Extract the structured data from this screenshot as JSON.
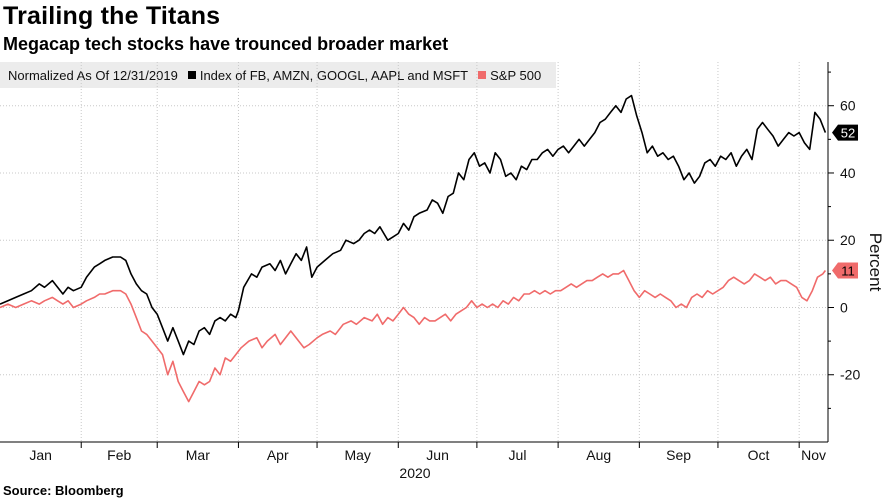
{
  "header": {
    "title": "Trailing the Titans",
    "subtitle": "Megacap tech stocks have trounced broader market"
  },
  "legend": {
    "note": "Normalized As Of 12/31/2019",
    "items": [
      {
        "label": "Index of FB, AMZN, GOOGL, AAPL and MSFT",
        "color": "#000000"
      },
      {
        "label": "S&P 500",
        "color": "#f06b6b"
      }
    ]
  },
  "source": "Source: Bloomberg",
  "colors": {
    "tech": "#000000",
    "spx": "#f06b6b",
    "grid": "#c8c8c8"
  },
  "chart_data": {
    "type": "line",
    "ylabel": "Percent",
    "year_label": "2020",
    "ylim": [
      -40,
      73
    ],
    "yticks": [
      -20,
      0,
      20,
      40,
      60
    ],
    "xlim": [
      0,
      316
    ],
    "months": [
      {
        "label": "Jan",
        "start": 0,
        "end": 31
      },
      {
        "label": "Feb",
        "start": 31,
        "end": 60
      },
      {
        "label": "Mar",
        "start": 60,
        "end": 91
      },
      {
        "label": "Apr",
        "start": 91,
        "end": 121
      },
      {
        "label": "May",
        "start": 121,
        "end": 152
      },
      {
        "label": "Jun",
        "start": 152,
        "end": 182
      },
      {
        "label": "Jul",
        "start": 182,
        "end": 213
      },
      {
        "label": "Aug",
        "start": 213,
        "end": 244
      },
      {
        "label": "Sep",
        "start": 244,
        "end": 274
      },
      {
        "label": "Oct",
        "start": 274,
        "end": 305
      },
      {
        "label": "Nov",
        "start": 305,
        "end": 316
      }
    ],
    "series": [
      {
        "name": "Index of FB, AMZN, GOOGL, AAPL and MSFT",
        "end_label": "52",
        "points": [
          [
            0,
            1
          ],
          [
            3,
            2
          ],
          [
            6,
            3
          ],
          [
            9,
            4
          ],
          [
            12,
            5
          ],
          [
            15,
            7
          ],
          [
            17,
            6
          ],
          [
            20,
            8
          ],
          [
            22,
            6
          ],
          [
            24,
            4
          ],
          [
            26,
            6
          ],
          [
            28,
            5
          ],
          [
            31,
            6
          ],
          [
            33,
            9
          ],
          [
            36,
            12
          ],
          [
            38,
            13
          ],
          [
            40,
            14
          ],
          [
            43,
            15
          ],
          [
            46,
            15
          ],
          [
            48,
            14
          ],
          [
            50,
            10
          ],
          [
            52,
            7
          ],
          [
            54,
            5
          ],
          [
            56,
            4
          ],
          [
            58,
            0
          ],
          [
            60,
            -2
          ],
          [
            62,
            -6
          ],
          [
            64,
            -10
          ],
          [
            66,
            -6
          ],
          [
            68,
            -10
          ],
          [
            70,
            -14
          ],
          [
            72,
            -10
          ],
          [
            74,
            -11
          ],
          [
            76,
            -7
          ],
          [
            78,
            -6
          ],
          [
            80,
            -8
          ],
          [
            82,
            -4
          ],
          [
            84,
            -3
          ],
          [
            86,
            -4
          ],
          [
            88,
            -2
          ],
          [
            90,
            -3
          ],
          [
            91,
            -1
          ],
          [
            93,
            6
          ],
          [
            96,
            10
          ],
          [
            98,
            9
          ],
          [
            100,
            12
          ],
          [
            103,
            13
          ],
          [
            105,
            11
          ],
          [
            107,
            14
          ],
          [
            109,
            10
          ],
          [
            111,
            13
          ],
          [
            113,
            16
          ],
          [
            115,
            14
          ],
          [
            117,
            18
          ],
          [
            119,
            9
          ],
          [
            121,
            12
          ],
          [
            124,
            14
          ],
          [
            127,
            16
          ],
          [
            130,
            17
          ],
          [
            132,
            20
          ],
          [
            135,
            19
          ],
          [
            137,
            20
          ],
          [
            139,
            22
          ],
          [
            141,
            23
          ],
          [
            143,
            22
          ],
          [
            145,
            24
          ],
          [
            148,
            20
          ],
          [
            150,
            21
          ],
          [
            152,
            22
          ],
          [
            154,
            25
          ],
          [
            156,
            23
          ],
          [
            158,
            27
          ],
          [
            160,
            28
          ],
          [
            163,
            29
          ],
          [
            165,
            32
          ],
          [
            167,
            31
          ],
          [
            169,
            28
          ],
          [
            171,
            33
          ],
          [
            173,
            34
          ],
          [
            175,
            40
          ],
          [
            177,
            38
          ],
          [
            179,
            44
          ],
          [
            181,
            46
          ],
          [
            183,
            42
          ],
          [
            185,
            43
          ],
          [
            187,
            40
          ],
          [
            189,
            46
          ],
          [
            191,
            44
          ],
          [
            193,
            39
          ],
          [
            195,
            40
          ],
          [
            197,
            38
          ],
          [
            199,
            42
          ],
          [
            201,
            41
          ],
          [
            203,
            44
          ],
          [
            205,
            44
          ],
          [
            207,
            46
          ],
          [
            209,
            47
          ],
          [
            211,
            45
          ],
          [
            213,
            47
          ],
          [
            215,
            48
          ],
          [
            217,
            46
          ],
          [
            219,
            48
          ],
          [
            221,
            50
          ],
          [
            223,
            48
          ],
          [
            225,
            50
          ],
          [
            227,
            52
          ],
          [
            229,
            55
          ],
          [
            231,
            56
          ],
          [
            233,
            58
          ],
          [
            235,
            60
          ],
          [
            237,
            58
          ],
          [
            239,
            62
          ],
          [
            241,
            63
          ],
          [
            243,
            57
          ],
          [
            245,
            52
          ],
          [
            247,
            46
          ],
          [
            249,
            48
          ],
          [
            251,
            45
          ],
          [
            253,
            46
          ],
          [
            255,
            44
          ],
          [
            257,
            45
          ],
          [
            259,
            42
          ],
          [
            261,
            38
          ],
          [
            263,
            40
          ],
          [
            265,
            37
          ],
          [
            267,
            39
          ],
          [
            269,
            43
          ],
          [
            271,
            44
          ],
          [
            273,
            42
          ],
          [
            275,
            45
          ],
          [
            277,
            44
          ],
          [
            279,
            46
          ],
          [
            281,
            42
          ],
          [
            283,
            45
          ],
          [
            285,
            47
          ],
          [
            287,
            44
          ],
          [
            289,
            53
          ],
          [
            291,
            55
          ],
          [
            293,
            53
          ],
          [
            295,
            51
          ],
          [
            297,
            48
          ],
          [
            299,
            50
          ],
          [
            301,
            52
          ],
          [
            303,
            51
          ],
          [
            305,
            52
          ],
          [
            307,
            49
          ],
          [
            309,
            47
          ],
          [
            311,
            58
          ],
          [
            313,
            56
          ],
          [
            315,
            52
          ]
        ]
      },
      {
        "name": "S&P 500",
        "end_label": "11",
        "points": [
          [
            0,
            0
          ],
          [
            3,
            1
          ],
          [
            6,
            0
          ],
          [
            9,
            1
          ],
          [
            12,
            2
          ],
          [
            15,
            1
          ],
          [
            17,
            2
          ],
          [
            20,
            3
          ],
          [
            22,
            2
          ],
          [
            24,
            1
          ],
          [
            26,
            2
          ],
          [
            28,
            0
          ],
          [
            31,
            1
          ],
          [
            33,
            2
          ],
          [
            36,
            3
          ],
          [
            38,
            4
          ],
          [
            40,
            4
          ],
          [
            43,
            5
          ],
          [
            46,
            5
          ],
          [
            48,
            4
          ],
          [
            50,
            1
          ],
          [
            52,
            -3
          ],
          [
            54,
            -7
          ],
          [
            56,
            -8
          ],
          [
            58,
            -10
          ],
          [
            60,
            -12
          ],
          [
            62,
            -14
          ],
          [
            64,
            -20
          ],
          [
            66,
            -16
          ],
          [
            68,
            -22
          ],
          [
            70,
            -25
          ],
          [
            72,
            -28
          ],
          [
            74,
            -25
          ],
          [
            76,
            -22
          ],
          [
            78,
            -23
          ],
          [
            80,
            -22
          ],
          [
            82,
            -18
          ],
          [
            84,
            -20
          ],
          [
            86,
            -15
          ],
          [
            88,
            -16
          ],
          [
            90,
            -14
          ],
          [
            92,
            -12
          ],
          [
            95,
            -10
          ],
          [
            98,
            -9
          ],
          [
            100,
            -12
          ],
          [
            102,
            -10
          ],
          [
            105,
            -8
          ],
          [
            107,
            -11
          ],
          [
            109,
            -9
          ],
          [
            111,
            -7
          ],
          [
            114,
            -10
          ],
          [
            116,
            -12
          ],
          [
            118,
            -11
          ],
          [
            121,
            -9
          ],
          [
            123,
            -8
          ],
          [
            126,
            -7
          ],
          [
            128,
            -8
          ],
          [
            131,
            -5
          ],
          [
            134,
            -4
          ],
          [
            136,
            -5
          ],
          [
            139,
            -3
          ],
          [
            142,
            -4
          ],
          [
            144,
            -2
          ],
          [
            146,
            -5
          ],
          [
            148,
            -3
          ],
          [
            150,
            -4
          ],
          [
            152,
            -2
          ],
          [
            154,
            0
          ],
          [
            156,
            -2
          ],
          [
            158,
            -3
          ],
          [
            160,
            -5
          ],
          [
            162,
            -3
          ],
          [
            164,
            -4
          ],
          [
            166,
            -4
          ],
          [
            168,
            -3
          ],
          [
            170,
            -2
          ],
          [
            172,
            -4
          ],
          [
            174,
            -2
          ],
          [
            176,
            -1
          ],
          [
            178,
            0
          ],
          [
            180,
            2
          ],
          [
            182,
            0
          ],
          [
            184,
            1
          ],
          [
            186,
            0
          ],
          [
            188,
            1
          ],
          [
            190,
            0
          ],
          [
            192,
            2
          ],
          [
            194,
            1
          ],
          [
            196,
            3
          ],
          [
            198,
            2
          ],
          [
            200,
            4
          ],
          [
            202,
            4
          ],
          [
            204,
            5
          ],
          [
            206,
            4
          ],
          [
            208,
            5
          ],
          [
            210,
            4
          ],
          [
            212,
            5
          ],
          [
            214,
            5
          ],
          [
            216,
            6
          ],
          [
            218,
            7
          ],
          [
            220,
            6
          ],
          [
            222,
            7
          ],
          [
            224,
            8
          ],
          [
            226,
            8
          ],
          [
            228,
            9
          ],
          [
            230,
            10
          ],
          [
            232,
            9
          ],
          [
            234,
            10
          ],
          [
            236,
            10
          ],
          [
            238,
            11
          ],
          [
            240,
            8
          ],
          [
            242,
            5
          ],
          [
            244,
            3
          ],
          [
            246,
            5
          ],
          [
            248,
            4
          ],
          [
            250,
            3
          ],
          [
            252,
            4
          ],
          [
            254,
            3
          ],
          [
            256,
            2
          ],
          [
            258,
            0
          ],
          [
            260,
            1
          ],
          [
            262,
            0
          ],
          [
            264,
            3
          ],
          [
            266,
            4
          ],
          [
            268,
            3
          ],
          [
            270,
            5
          ],
          [
            272,
            4
          ],
          [
            274,
            5
          ],
          [
            276,
            6
          ],
          [
            278,
            8
          ],
          [
            280,
            9
          ],
          [
            282,
            8
          ],
          [
            284,
            7
          ],
          [
            286,
            8
          ],
          [
            288,
            10
          ],
          [
            290,
            9
          ],
          [
            292,
            8
          ],
          [
            294,
            9
          ],
          [
            296,
            7
          ],
          [
            298,
            8
          ],
          [
            300,
            8
          ],
          [
            302,
            7
          ],
          [
            304,
            6
          ],
          [
            306,
            3
          ],
          [
            308,
            2
          ],
          [
            310,
            5
          ],
          [
            312,
            9
          ],
          [
            314,
            10
          ],
          [
            315,
            11
          ]
        ]
      }
    ]
  }
}
